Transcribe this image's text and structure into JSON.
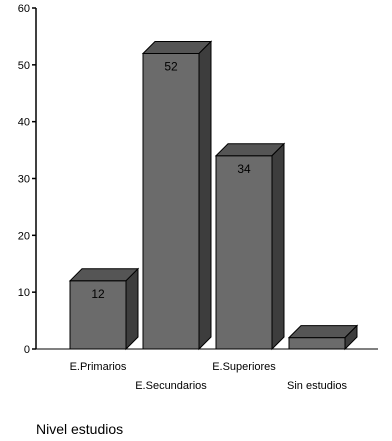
{
  "chart_data": {
    "type": "bar",
    "style": "3d",
    "categories": [
      "E.Primarios",
      "E.Secundarios",
      "E.Superiores",
      "Sin estudios"
    ],
    "values": [
      12,
      52,
      34,
      2
    ],
    "data_labels": [
      "12",
      "52",
      "34",
      ""
    ],
    "title": "",
    "xlabel": "Nivel estudios",
    "ylabel": "",
    "ylim": [
      0,
      60
    ],
    "yticks": [
      "0",
      "10",
      "20",
      "30",
      "40",
      "50",
      "60"
    ],
    "grid": false,
    "legend": "none",
    "colors": {
      "bar_front": "#6b6b6b",
      "bar_top": "#555555",
      "bar_side": "#3d3d3d",
      "outline": "#000000",
      "axis": "#000000"
    }
  }
}
